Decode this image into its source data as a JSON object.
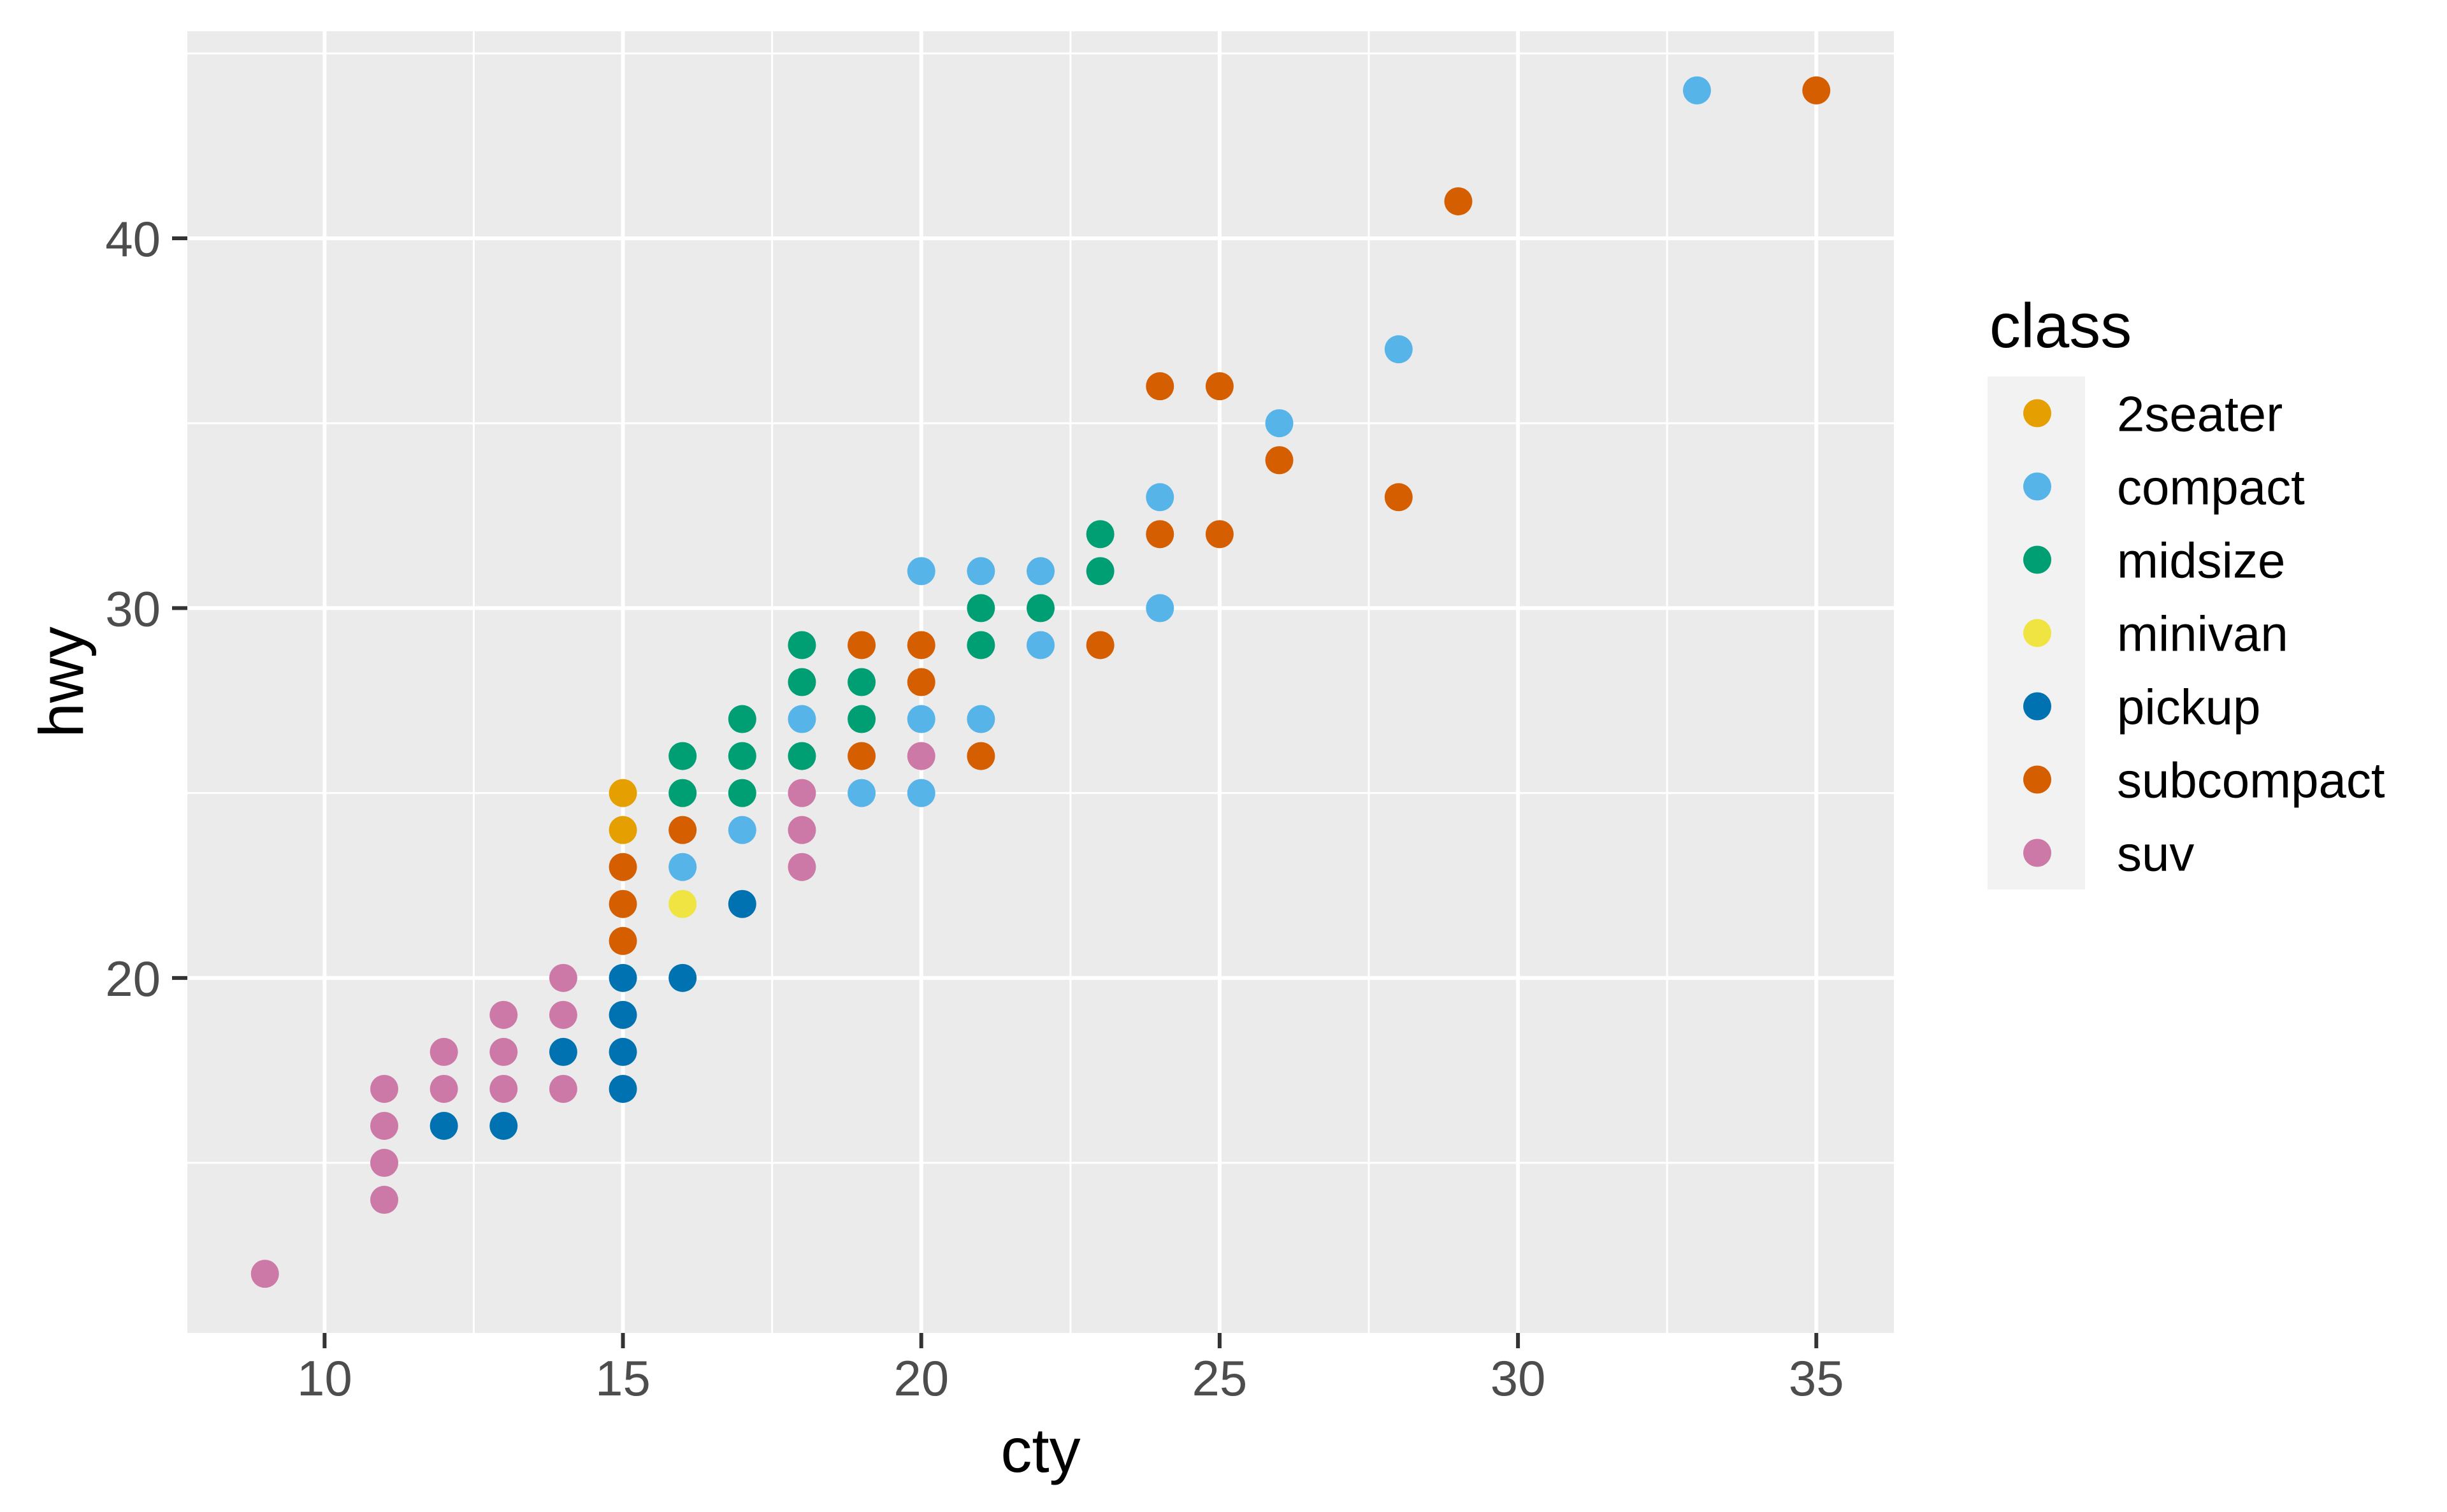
{
  "chart_data": {
    "type": "scatter",
    "title": "",
    "xlabel": "cty",
    "ylabel": "hwy",
    "legend_title": "class",
    "xlim": [
      7.7,
      36.3
    ],
    "ylim": [
      10.4,
      45.6
    ],
    "x_ticks": [
      10,
      15,
      20,
      25,
      30,
      35
    ],
    "y_ticks": [
      20,
      30,
      40
    ],
    "x_minor": [
      12.5,
      17.5,
      22.5,
      27.5,
      32.5
    ],
    "y_minor": [
      15,
      25,
      35,
      45
    ],
    "grid": "on",
    "legend_position": "right",
    "series": [
      {
        "name": "2seater",
        "color": "#E69F00",
        "points": [
          [
            15,
            24
          ],
          [
            15,
            25
          ]
        ]
      },
      {
        "name": "compact",
        "color": "#56B4E9",
        "points": [
          [
            16,
            23
          ],
          [
            17,
            24
          ],
          [
            18,
            27
          ],
          [
            19,
            25
          ],
          [
            20,
            25
          ],
          [
            20,
            27
          ],
          [
            20,
            31
          ],
          [
            21,
            27
          ],
          [
            21,
            31
          ],
          [
            22,
            29
          ],
          [
            22,
            31
          ],
          [
            24,
            30
          ],
          [
            24,
            33
          ],
          [
            26,
            35
          ],
          [
            28,
            37
          ],
          [
            33,
            44
          ]
        ]
      },
      {
        "name": "midsize",
        "color": "#009E73",
        "points": [
          [
            16,
            25
          ],
          [
            16,
            26
          ],
          [
            17,
            25
          ],
          [
            17,
            26
          ],
          [
            17,
            27
          ],
          [
            18,
            26
          ],
          [
            18,
            28
          ],
          [
            18,
            29
          ],
          [
            19,
            27
          ],
          [
            19,
            28
          ],
          [
            21,
            29
          ],
          [
            21,
            30
          ],
          [
            22,
            30
          ],
          [
            23,
            31
          ],
          [
            23,
            32
          ]
        ]
      },
      {
        "name": "minivan",
        "color": "#F0E442",
        "points": [
          [
            16,
            22
          ]
        ]
      },
      {
        "name": "pickup",
        "color": "#0072B2",
        "points": [
          [
            12,
            16
          ],
          [
            13,
            16
          ],
          [
            14,
            18
          ],
          [
            15,
            17
          ],
          [
            15,
            18
          ],
          [
            15,
            19
          ],
          [
            15,
            20
          ],
          [
            16,
            20
          ],
          [
            17,
            22
          ]
        ]
      },
      {
        "name": "subcompact",
        "color": "#D55E00",
        "points": [
          [
            15,
            21
          ],
          [
            15,
            22
          ],
          [
            15,
            23
          ],
          [
            16,
            24
          ],
          [
            19,
            26
          ],
          [
            19,
            29
          ],
          [
            20,
            28
          ],
          [
            20,
            29
          ],
          [
            21,
            26
          ],
          [
            23,
            29
          ],
          [
            24,
            32
          ],
          [
            24,
            36
          ],
          [
            25,
            32
          ],
          [
            25,
            36
          ],
          [
            26,
            34
          ],
          [
            28,
            33
          ],
          [
            29,
            41
          ],
          [
            35,
            44
          ]
        ]
      },
      {
        "name": "suv",
        "color": "#CC79A7",
        "points": [
          [
            9,
            12
          ],
          [
            11,
            14
          ],
          [
            11,
            15
          ],
          [
            11,
            16
          ],
          [
            11,
            17
          ],
          [
            12,
            17
          ],
          [
            12,
            18
          ],
          [
            13,
            17
          ],
          [
            13,
            18
          ],
          [
            13,
            19
          ],
          [
            14,
            17
          ],
          [
            14,
            19
          ],
          [
            14,
            20
          ],
          [
            18,
            23
          ],
          [
            18,
            24
          ],
          [
            18,
            25
          ],
          [
            20,
            26
          ]
        ]
      }
    ]
  },
  "theme": {
    "panel_bg": "#EBEBEB",
    "grid_color": "#FFFFFF",
    "legend_key_bg": "#F2F2F2",
    "tick_color": "#333333",
    "tick_label_color": "#4D4D4D",
    "title_color": "#000000"
  }
}
